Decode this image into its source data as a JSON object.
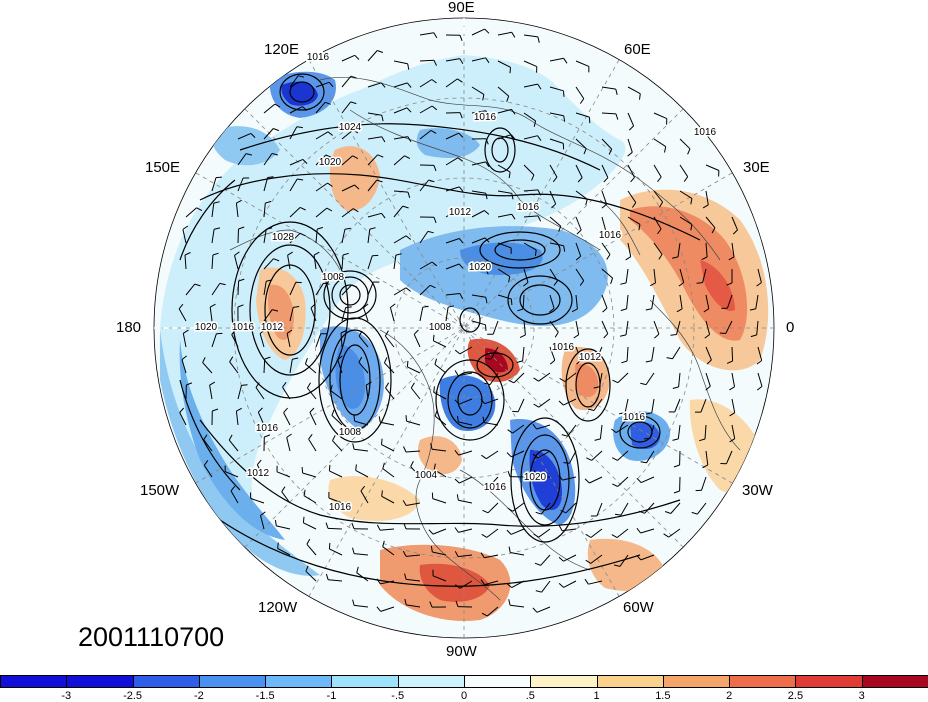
{
  "map": {
    "projection": "north polar stereographic",
    "lon_labels": {
      "top": "90E",
      "top_left": "120E",
      "top_right": "60E",
      "upper_left": "150E",
      "upper_right": "30E",
      "left": "180",
      "right": "0",
      "lower_left": "150W",
      "lower_right": "30W",
      "bottom_left": "120W",
      "bottom_right": "60W",
      "bottom": "90W"
    },
    "isobar_labels": [
      "1016",
      "1008",
      "1024",
      "1020",
      "1016",
      "1016",
      "1028",
      "1012",
      "1020",
      "1016",
      "1016",
      "1012",
      "1016",
      "1008",
      "1012",
      "1020",
      "1016",
      "1008",
      "1004",
      "1020",
      "1016",
      "1016",
      "1012",
      "1016",
      "1016"
    ]
  },
  "date_label": "2001110700",
  "colorbar": {
    "ticks": [
      "-3",
      "-2.5",
      "-2",
      "-1.5",
      "-1",
      "-.5",
      "0",
      ".5",
      "1",
      "1.5",
      "2",
      "2.5",
      "3"
    ],
    "colors": [
      "#1010d8",
      "#2e5ee8",
      "#4a92f2",
      "#6cb8f8",
      "#9ee2fb",
      "#cdf4fd",
      "#f7fdff",
      "#fef3c6",
      "#fbd28d",
      "#f5a56a",
      "#ee6d4b",
      "#e03b35",
      "#a8081f"
    ]
  },
  "palette": {
    "ocean_neutral": "#f4fbfd",
    "contour": "#000000",
    "coastline": "#333333"
  }
}
